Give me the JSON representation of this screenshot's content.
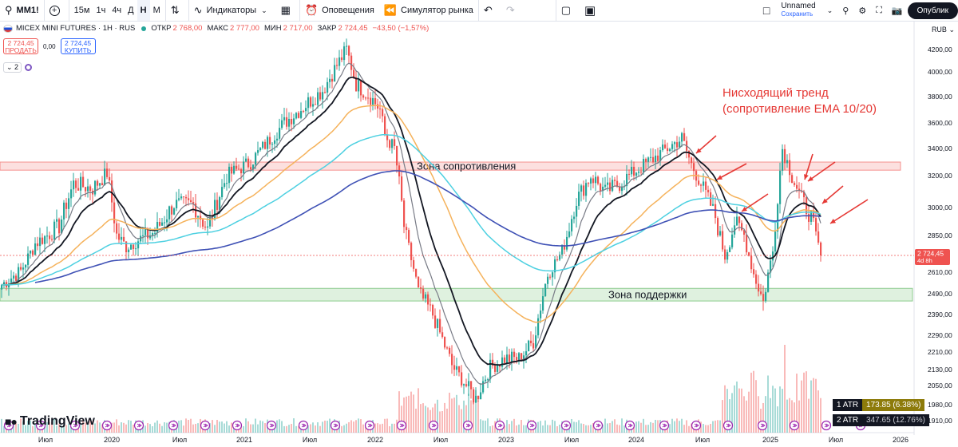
{
  "toolbar": {
    "symbol": "MM1!",
    "add_icon": "plus-icon",
    "intervals": [
      "15м",
      "1ч",
      "4ч",
      "Д",
      "Н",
      "М"
    ],
    "active_interval": "Н",
    "indicators_label": "Индикаторы",
    "alerts_label": "Оповещения",
    "replay_label": "Симулятор рынка",
    "layout_name": "Unnamed",
    "layout_sub": "Сохранить",
    "publish_label": "Опублик"
  },
  "legend": {
    "symbol_full": "MICEX MINI FUTURES · 1Н · RUS",
    "open_label": "ОТКР",
    "open": "2 768,00",
    "high_label": "МАКС",
    "high": "2 777,00",
    "low_label": "МИН",
    "low": "2 717,00",
    "close_label": "ЗАКР",
    "close": "2 724,45",
    "change": "−43,50 (−1,57%)"
  },
  "trade": {
    "sell_price": "2 724,45",
    "sell_label": "ПРОДАТЬ",
    "spread": "0,00",
    "buy_price": "2 724,45",
    "buy_label": "КУПИТЬ"
  },
  "indicators_count": "2",
  "currency": "RUB",
  "colors": {
    "up": "#26a69a",
    "down": "#ef5350",
    "ema10": "#787b86",
    "ema20": "#131722",
    "ema50": "#f5b25b",
    "ema100": "#4dd0e1",
    "ema200": "#3f51b5",
    "resistance": "#ef5350",
    "support": "#4caf50",
    "annotation": "#e53935"
  },
  "chart_data": {
    "type": "candlestick",
    "price_axis_labels": [
      "4200,00",
      "4000,00",
      "3800,00",
      "3600,00",
      "3400,00",
      "3200,00",
      "3000,00",
      "2850,00",
      "2724,45",
      "2610,00",
      "2490,00",
      "2390,00",
      "2290,00",
      "2210,00",
      "2130,00",
      "2050,00",
      "1980,00",
      "1910,00"
    ],
    "time_axis_labels": [
      "Июл",
      "2020",
      "Июл",
      "2021",
      "Июл",
      "2022",
      "Июл",
      "2023",
      "Июл",
      "2024",
      "Июл",
      "2025",
      "Июл",
      "2026"
    ],
    "last_price": "2 724,45",
    "last_price_countdown": "4d 8h",
    "zones": [
      {
        "name": "Зона сопротивления",
        "from": 3240,
        "to": 3300
      },
      {
        "name": "Зона поддержки",
        "from": 2455,
        "to": 2520
      }
    ],
    "annotation": [
      "Нисходящий тренд",
      "(сопротивление EMA 10/20)"
    ],
    "price_key": [
      {
        "t": 0,
        "p": 2540
      },
      {
        "t": 8,
        "p": 2620
      },
      {
        "t": 14,
        "p": 2800
      },
      {
        "t": 24,
        "p": 2900
      },
      {
        "t": 30,
        "p": 3150
      },
      {
        "t": 38,
        "p": 3120
      },
      {
        "t": 44,
        "p": 3220
      },
      {
        "t": 48,
        "p": 2850
      },
      {
        "t": 52,
        "p": 2780
      },
      {
        "t": 58,
        "p": 2830
      },
      {
        "t": 64,
        "p": 2870
      },
      {
        "t": 72,
        "p": 3020
      },
      {
        "t": 80,
        "p": 3020
      },
      {
        "t": 86,
        "p": 2880
      },
      {
        "t": 94,
        "p": 3200
      },
      {
        "t": 104,
        "p": 3300
      },
      {
        "t": 118,
        "p": 3600
      },
      {
        "t": 134,
        "p": 3850
      },
      {
        "t": 144,
        "p": 4200
      },
      {
        "t": 148,
        "p": 3900
      },
      {
        "t": 154,
        "p": 3800
      },
      {
        "t": 158,
        "p": 3700
      },
      {
        "t": 160,
        "p": 3500
      },
      {
        "t": 164,
        "p": 3400
      },
      {
        "t": 168,
        "p": 2900
      },
      {
        "t": 174,
        "p": 2500
      },
      {
        "t": 180,
        "p": 2390
      },
      {
        "t": 188,
        "p": 2150
      },
      {
        "t": 194,
        "p": 2050
      },
      {
        "t": 198,
        "p": 2000
      },
      {
        "t": 204,
        "p": 2140
      },
      {
        "t": 210,
        "p": 2180
      },
      {
        "t": 216,
        "p": 2180
      },
      {
        "t": 222,
        "p": 2260
      },
      {
        "t": 228,
        "p": 2600
      },
      {
        "t": 234,
        "p": 2750
      },
      {
        "t": 240,
        "p": 3050
      },
      {
        "t": 246,
        "p": 3200
      },
      {
        "t": 252,
        "p": 3100
      },
      {
        "t": 258,
        "p": 3150
      },
      {
        "t": 266,
        "p": 3250
      },
      {
        "t": 274,
        "p": 3350
      },
      {
        "t": 284,
        "p": 3480
      },
      {
        "t": 288,
        "p": 3280
      },
      {
        "t": 292,
        "p": 3150
      },
      {
        "t": 298,
        "p": 2950
      },
      {
        "t": 302,
        "p": 2720
      },
      {
        "t": 306,
        "p": 2920
      },
      {
        "t": 310,
        "p": 2850
      },
      {
        "t": 314,
        "p": 2600
      },
      {
        "t": 318,
        "p": 2450
      },
      {
        "t": 322,
        "p": 2750
      },
      {
        "t": 326,
        "p": 3400
      },
      {
        "t": 330,
        "p": 3200
      },
      {
        "t": 334,
        "p": 3050
      },
      {
        "t": 338,
        "p": 2950
      },
      {
        "t": 342,
        "p": 2724.45
      }
    ],
    "ema_periods": [
      10,
      20,
      50,
      100,
      200
    ],
    "indicators": [
      {
        "name": "1 ATR",
        "value": "173.85 (6.38%)"
      },
      {
        "name": "2 ATR",
        "value": "347.65 (12.76%)"
      }
    ]
  },
  "branding": "TradingView"
}
